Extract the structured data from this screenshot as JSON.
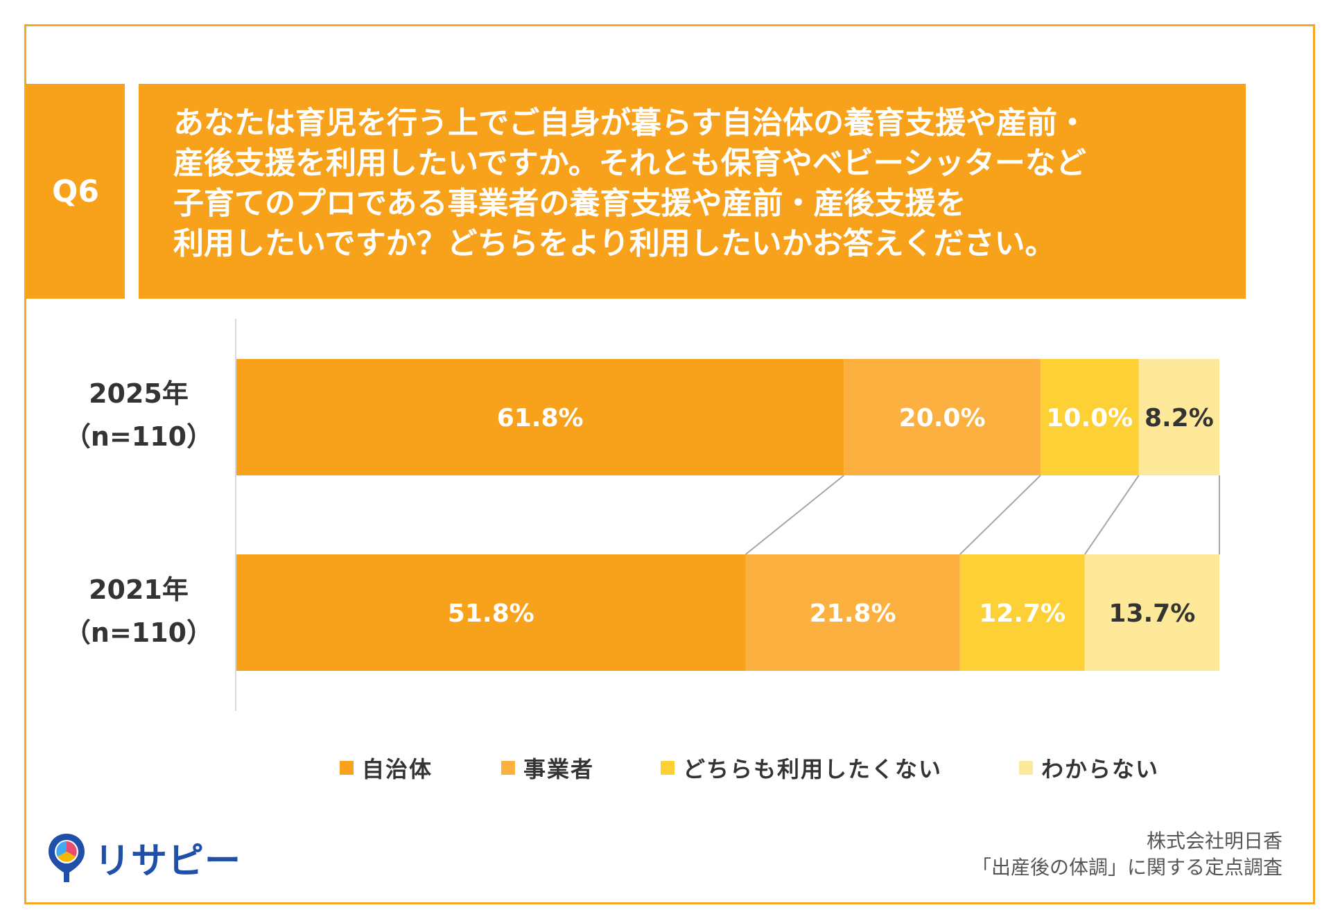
{
  "question": {
    "label": "Q6",
    "lines": [
      "あなたは育児を行う上でご自身が暮らす自治体の養育支援や産前・",
      "産後支援を利用したいですか。それとも保育やベビーシッターなど",
      "子育てのプロである事業者の養育支援や産前・産後支援を",
      "利用したいですか？どちらをより利用したいかお答えください。"
    ]
  },
  "rows": [
    {
      "year": "2025年",
      "n": "（n=110）"
    },
    {
      "year": "2021年",
      "n": "（n=110）"
    }
  ],
  "chart_data": {
    "type": "bar",
    "orientation": "horizontal-stacked-100",
    "categories": [
      "2025年（n=110）",
      "2021年（n=110）"
    ],
    "series": [
      {
        "name": "自治体",
        "color": "#f8a11b",
        "label_color": "#ffffff",
        "values": [
          61.8,
          51.8
        ],
        "labels": [
          "61.8%",
          "51.8%"
        ]
      },
      {
        "name": "事業者",
        "color": "#fbb040",
        "label_color": "#ffffff",
        "values": [
          20.0,
          21.8
        ],
        "labels": [
          "20.0%",
          "21.8%"
        ]
      },
      {
        "name": "どちらも利用したくない",
        "color": "#fdd035",
        "label_color": "#ffffff",
        "values": [
          10.0,
          12.7
        ],
        "labels": [
          "10.0%",
          "12.7%"
        ]
      },
      {
        "name": "わからない",
        "color": "#fee89a",
        "label_color": "#333333",
        "values": [
          8.2,
          13.7
        ],
        "labels": [
          "8.2%",
          "13.7%"
        ]
      }
    ],
    "xlim": [
      0,
      100
    ],
    "grid": false,
    "legend_position": "bottom"
  },
  "logo": {
    "text": "リサピー"
  },
  "source": {
    "line1": "株式会社明日香",
    "line2": "「出産後の体調」に関する定点調査"
  }
}
